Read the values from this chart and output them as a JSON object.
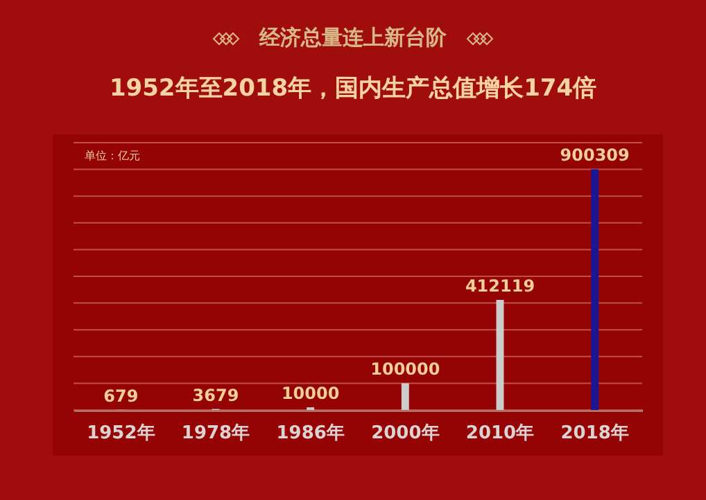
{
  "chart_data": {
    "type": "bar",
    "title": "经济总量连上新台阶",
    "subtitle": "1952年至2018年，国内生产总值增长174倍",
    "annotations": [
      "单位：亿元"
    ],
    "categories": [
      "1952年",
      "1978年",
      "1986年",
      "2000年",
      "2010年",
      "2018年"
    ],
    "values": [
      679,
      3679,
      10000,
      100000,
      412119,
      900309
    ],
    "colors": [
      "#cccccc",
      "#cccccc",
      "#cccccc",
      "#cccccc",
      "#cccccc",
      "#1a1696"
    ],
    "ylim": [
      0,
      1000000
    ],
    "yticks": [
      {
        "value": 0,
        "label": null
      },
      {
        "value": 100000,
        "label": null
      },
      {
        "value": 200000,
        "label": null
      },
      {
        "value": 300000,
        "label": null
      },
      {
        "value": 400000,
        "label": null
      },
      {
        "value": 500000,
        "label": null
      },
      {
        "value": 600000,
        "label": null
      },
      {
        "value": 700000,
        "label": null
      },
      {
        "value": 800000,
        "label": null
      },
      {
        "value": 900000,
        "label": null
      },
      {
        "value": 1000000,
        "label": null
      }
    ],
    "grid": "y",
    "tick_labels": "x",
    "data_labels": true
  }
}
